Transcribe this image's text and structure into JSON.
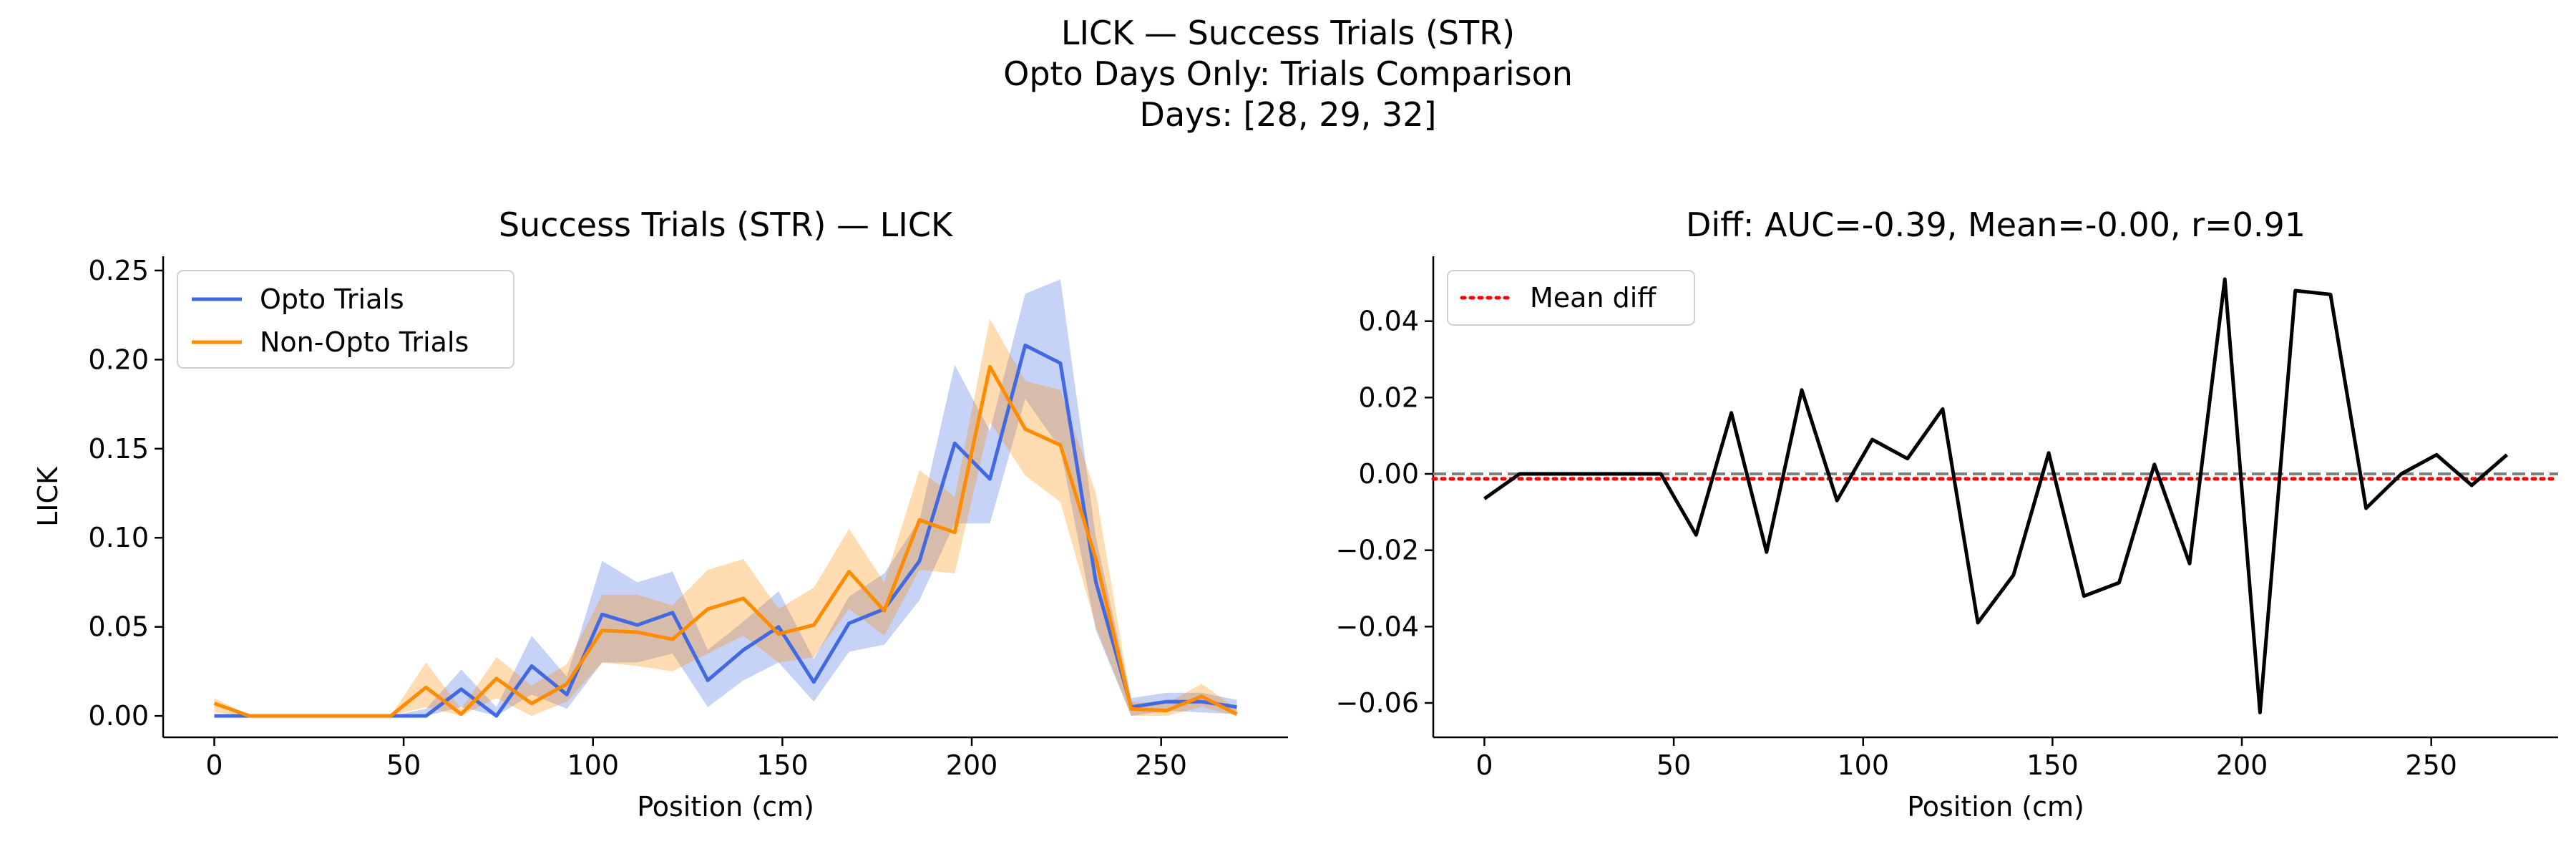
{
  "figure": {
    "suptitle_lines": [
      "LICK — Success Trials (STR)",
      "Opto Days Only: Trials Comparison",
      "Days: [28, 29, 32]"
    ]
  },
  "colors": {
    "opto": "#4169e1",
    "non_opto": "#ff8c00",
    "diff": "#000000",
    "mean_diff": "#ff0000",
    "zero_line": "#808080"
  },
  "chart_data": [
    {
      "type": "line",
      "title": "Success Trials (STR) — LICK",
      "xlabel": "Position (cm)",
      "ylabel": "LICK",
      "xlim": [
        -13.5,
        283.5
      ],
      "ylim": [
        -0.012,
        0.258
      ],
      "xticks": [
        0,
        50,
        100,
        150,
        200,
        250
      ],
      "yticks": [
        0.0,
        0.05,
        0.1,
        0.15,
        0.2,
        0.25
      ],
      "ytick_labels": [
        "0.00",
        "0.05",
        "0.10",
        "0.15",
        "0.20",
        "0.25"
      ],
      "grid": false,
      "legend_position": "upper-left",
      "x": [
        0,
        9.3,
        18.6,
        27.9,
        37.2,
        46.6,
        55.9,
        65.2,
        74.5,
        83.8,
        93.1,
        102.4,
        111.7,
        121.0,
        130.3,
        139.7,
        149.0,
        158.3,
        167.6,
        176.9,
        186.2,
        195.5,
        204.8,
        214.1,
        223.4,
        232.8,
        242.1,
        251.4,
        260.7,
        270.0
      ],
      "series": [
        {
          "name": "Opto Trials",
          "values": [
            0.0,
            0.0,
            0.0,
            0.0,
            0.0,
            0.0,
            0.0,
            0.015,
            0.0,
            0.028,
            0.012,
            0.057,
            0.051,
            0.058,
            0.02,
            0.037,
            0.05,
            0.019,
            0.052,
            0.06,
            0.087,
            0.153,
            0.133,
            0.208,
            0.198,
            0.075,
            0.005,
            0.008,
            0.008,
            0.005
          ],
          "lower": [
            0.0,
            0.0,
            0.0,
            0.0,
            0.0,
            0.0,
            0.0,
            0.005,
            0.0,
            0.012,
            0.004,
            0.03,
            0.03,
            0.035,
            0.005,
            0.02,
            0.03,
            0.008,
            0.036,
            0.04,
            0.065,
            0.108,
            0.108,
            0.178,
            0.15,
            0.048,
            0.0,
            0.003,
            0.002,
            0.001
          ],
          "upper": [
            0.0,
            0.0,
            0.0,
            0.0,
            0.0,
            0.0,
            0.004,
            0.026,
            0.005,
            0.045,
            0.022,
            0.087,
            0.075,
            0.081,
            0.037,
            0.053,
            0.07,
            0.032,
            0.067,
            0.08,
            0.11,
            0.197,
            0.16,
            0.237,
            0.245,
            0.1,
            0.01,
            0.013,
            0.013,
            0.009
          ]
        },
        {
          "name": "Non-Opto Trials",
          "values": [
            0.007,
            0.0,
            0.0,
            0.0,
            0.0,
            0.0,
            0.016,
            0.001,
            0.021,
            0.007,
            0.018,
            0.048,
            0.047,
            0.043,
            0.06,
            0.066,
            0.046,
            0.051,
            0.081,
            0.059,
            0.11,
            0.103,
            0.196,
            0.161,
            0.152,
            0.088,
            0.004,
            0.003,
            0.011,
            0.001
          ],
          "lower": [
            0.002,
            0.0,
            0.0,
            0.0,
            0.0,
            0.0,
            0.005,
            0.0,
            0.01,
            0.0,
            0.008,
            0.03,
            0.028,
            0.025,
            0.035,
            0.045,
            0.03,
            0.033,
            0.06,
            0.045,
            0.082,
            0.08,
            0.165,
            0.135,
            0.12,
            0.05,
            0.0,
            0.0,
            0.005,
            0.0
          ],
          "upper": [
            0.01,
            0.0,
            0.0,
            0.0,
            0.0,
            0.0,
            0.03,
            0.004,
            0.033,
            0.017,
            0.029,
            0.068,
            0.068,
            0.062,
            0.082,
            0.088,
            0.06,
            0.072,
            0.105,
            0.075,
            0.138,
            0.123,
            0.223,
            0.188,
            0.183,
            0.125,
            0.008,
            0.007,
            0.018,
            0.004
          ]
        }
      ]
    },
    {
      "type": "line",
      "title": "Diff: AUC=-0.39, Mean=-0.00, r=0.91",
      "xlabel": "Position (cm)",
      "ylabel": "",
      "xlim": [
        -13.5,
        283.5
      ],
      "ylim": [
        -0.069,
        0.057
      ],
      "xticks": [
        0,
        50,
        100,
        150,
        200,
        250
      ],
      "yticks": [
        -0.06,
        -0.04,
        -0.02,
        0.0,
        0.02,
        0.04
      ],
      "ytick_labels": [
        "−0.06",
        "−0.04",
        "−0.02",
        "0.00",
        "0.02",
        "0.04"
      ],
      "grid": false,
      "legend_position": "upper-left",
      "x": [
        0,
        9.3,
        18.6,
        27.9,
        37.2,
        46.6,
        55.9,
        65.2,
        74.5,
        83.8,
        93.1,
        102.4,
        111.7,
        121.0,
        130.3,
        139.7,
        149.0,
        158.3,
        167.6,
        176.9,
        186.2,
        195.5,
        204.8,
        214.1,
        223.4,
        232.8,
        242.1,
        251.4,
        260.7,
        270.0
      ],
      "series": [
        {
          "name": "",
          "values": [
            -0.0065,
            0.0,
            0.0,
            0.0,
            0.0,
            0.0,
            -0.016,
            0.016,
            -0.0205,
            0.022,
            -0.007,
            0.009,
            0.004,
            0.017,
            -0.039,
            -0.0265,
            0.0055,
            -0.032,
            -0.0285,
            0.0025,
            -0.0235,
            0.051,
            -0.0625,
            0.048,
            0.047,
            -0.009,
            0.0,
            0.005,
            -0.003,
            0.005
          ]
        }
      ],
      "mean_diff_name": "Mean diff",
      "mean_diff_value": -0.0013,
      "zero_line": 0
    }
  ]
}
